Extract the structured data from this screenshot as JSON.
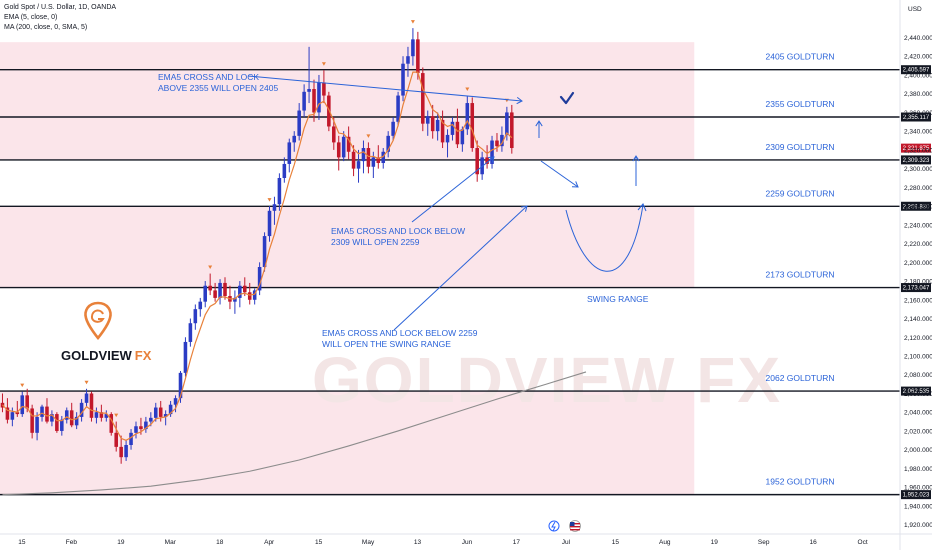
{
  "legend": {
    "symbol": "Gold Spot / U.S. Dollar, 1D, OANDA",
    "ema": "EMA (5, close, 0)",
    "ma": "MA (200, close, 0, SMA, 5)"
  },
  "currency": "USD",
  "brand": {
    "name": "GOLDVIEW",
    "suffix": "FX",
    "watermark": "GOLDVIEW FX"
  },
  "colors": {
    "up": "#2b3cc4",
    "down": "#c2182b",
    "zone": "#f9dce3",
    "annotation": "#2b63d8",
    "ema": "#e8813a",
    "ma": "#8c8c8c",
    "level_line": "#131722"
  },
  "levels": [
    {
      "label": "2405 GOLDTURN",
      "price": 2405.597,
      "tag": "2,405.597"
    },
    {
      "label": "2355 GOLDTURN",
      "price": 2355.117,
      "tag": "2,355.117"
    },
    {
      "label": "2309 GOLDTURN",
      "price": 2309.323,
      "tag": "2,309.323"
    },
    {
      "label": "2259 GOLDTURN",
      "price": 2259.83,
      "tag": "2,259.830"
    },
    {
      "label": "2173 GOLDTURN",
      "price": 2173.047,
      "tag": "2,173.047"
    },
    {
      "label": "2062 GOLDTURN",
      "price": 2062.535,
      "tag": "2,062.535"
    },
    {
      "label": "1952 GOLDTURN",
      "price": 1952.023,
      "tag": "1,952.023"
    }
  ],
  "current_price": {
    "price": 2321.875,
    "tag": "2,321.875"
  },
  "annotations": [
    {
      "lines": [
        "EMA5 CROSS AND LOCK",
        "ABOVE 2355 WILL OPEN 2405"
      ]
    },
    {
      "lines": [
        "EMA5 CROSS AND LOCK BELOW",
        "2309 WILL OPEN 2259"
      ]
    },
    {
      "lines": [
        "EMA5 CROSS AND LOCK BELOW 2259",
        "WILL OPEN THE SWING RANGE"
      ]
    },
    {
      "lines": [
        "SWING RANGE"
      ]
    }
  ],
  "chart_data": {
    "type": "candlestick",
    "title": "Gold Spot / U.S. Dollar, 1D, OANDA",
    "ylim": [
      1910,
      2480
    ],
    "y_ticks": [
      1920,
      1940,
      1960,
      1980,
      2000,
      2020,
      2040,
      2060,
      2080,
      2100,
      2120,
      2140,
      2160,
      2180,
      2200,
      2220,
      2240,
      2260,
      2280,
      2300,
      2320,
      2340,
      2360,
      2380,
      2400,
      2420,
      2440
    ],
    "y_tick_labels": [
      "1,920.000",
      "1,940.000",
      "1,960.000",
      "1,980.000",
      "2,000.000",
      "2,020.000",
      "2,040.000",
      "2,060.000",
      "2,080.000",
      "2,100.000",
      "2,120.000",
      "2,140.000",
      "2,160.000",
      "2,180.000",
      "2,200.000",
      "2,220.000",
      "2,240.000",
      "2,260.000",
      "2,280.000",
      "2,300.000",
      "2,320.000",
      "2,340.000",
      "2,360.000",
      "2,380.000",
      "2,400.000",
      "2,420.000",
      "2,440.000"
    ],
    "x_labels": [
      "15",
      "Feb",
      "19",
      "Mar",
      "18",
      "Apr",
      "15",
      "May",
      "13",
      "Jun",
      "17",
      "Jul",
      "15",
      "Aug",
      "19",
      "Sep",
      "16",
      "Oct"
    ],
    "x_label_bar_index": [
      10,
      20,
      30,
      40,
      50,
      60,
      70,
      80,
      90,
      100,
      110,
      120,
      130,
      140,
      150,
      160,
      170,
      180
    ],
    "total_slots": 182,
    "zones": [
      [
        2355.117,
        2435
      ],
      [
        2309.323,
        2355.117
      ],
      [
        2173.047,
        2259.83
      ],
      [
        1952.023,
        2062.535
      ]
    ],
    "candles": [
      [
        2050,
        2060,
        2040,
        2045
      ],
      [
        2045,
        2055,
        2028,
        2032
      ],
      [
        2032,
        2045,
        2025,
        2040
      ],
      [
        2040,
        2052,
        2035,
        2038
      ],
      [
        2038,
        2062,
        2035,
        2058
      ],
      [
        2058,
        2065,
        2040,
        2044
      ],
      [
        2044,
        2048,
        2012,
        2018
      ],
      [
        2018,
        2040,
        2010,
        2035
      ],
      [
        2035,
        2048,
        2030,
        2046
      ],
      [
        2046,
        2055,
        2028,
        2030
      ],
      [
        2030,
        2042,
        2025,
        2038
      ],
      [
        2038,
        2040,
        2018,
        2020
      ],
      [
        2020,
        2036,
        2015,
        2032
      ],
      [
        2032,
        2045,
        2028,
        2042
      ],
      [
        2042,
        2050,
        2024,
        2026
      ],
      [
        2026,
        2040,
        2022,
        2035
      ],
      [
        2035,
        2054,
        2030,
        2050
      ],
      [
        2050,
        2065,
        2045,
        2060
      ],
      [
        2060,
        2062,
        2030,
        2034
      ],
      [
        2034,
        2045,
        2028,
        2040
      ],
      [
        2040,
        2048,
        2030,
        2034
      ],
      [
        2034,
        2042,
        2030,
        2038
      ],
      [
        2038,
        2040,
        2015,
        2018
      ],
      [
        2018,
        2030,
        1998,
        2003
      ],
      [
        2003,
        2015,
        1985,
        1992
      ],
      [
        1992,
        2010,
        1988,
        2005
      ],
      [
        2005,
        2022,
        2000,
        2018
      ],
      [
        2018,
        2030,
        2012,
        2025
      ],
      [
        2025,
        2034,
        2016,
        2022
      ],
      [
        2022,
        2035,
        2018,
        2030
      ],
      [
        2030,
        2040,
        2025,
        2034
      ],
      [
        2034,
        2050,
        2030,
        2045
      ],
      [
        2045,
        2052,
        2030,
        2035
      ],
      [
        2035,
        2042,
        2026,
        2038
      ],
      [
        2038,
        2052,
        2035,
        2048
      ],
      [
        2048,
        2058,
        2040,
        2055
      ],
      [
        2055,
        2084,
        2050,
        2082
      ],
      [
        2082,
        2120,
        2078,
        2115
      ],
      [
        2115,
        2140,
        2110,
        2135
      ],
      [
        2135,
        2155,
        2128,
        2150
      ],
      [
        2150,
        2162,
        2142,
        2158
      ],
      [
        2158,
        2180,
        2152,
        2175
      ],
      [
        2175,
        2188,
        2165,
        2170
      ],
      [
        2170,
        2178,
        2158,
        2162
      ],
      [
        2162,
        2182,
        2155,
        2178
      ],
      [
        2178,
        2184,
        2160,
        2164
      ],
      [
        2164,
        2175,
        2150,
        2158
      ],
      [
        2158,
        2170,
        2145,
        2162
      ],
      [
        2162,
        2180,
        2152,
        2175
      ],
      [
        2175,
        2184,
        2164,
        2168
      ],
      [
        2168,
        2178,
        2155,
        2160
      ],
      [
        2160,
        2172,
        2155,
        2170
      ],
      [
        2170,
        2200,
        2165,
        2195
      ],
      [
        2195,
        2232,
        2190,
        2228
      ],
      [
        2228,
        2260,
        2222,
        2255
      ],
      [
        2255,
        2270,
        2240,
        2262
      ],
      [
        2262,
        2295,
        2255,
        2290
      ],
      [
        2290,
        2312,
        2285,
        2305
      ],
      [
        2305,
        2332,
        2296,
        2328
      ],
      [
        2328,
        2340,
        2318,
        2335
      ],
      [
        2335,
        2370,
        2330,
        2362
      ],
      [
        2362,
        2390,
        2355,
        2382
      ],
      [
        2382,
        2430,
        2370,
        2385
      ],
      [
        2385,
        2395,
        2350,
        2360
      ],
      [
        2360,
        2400,
        2352,
        2392
      ],
      [
        2392,
        2405,
        2370,
        2378
      ],
      [
        2378,
        2382,
        2340,
        2345
      ],
      [
        2345,
        2355,
        2320,
        2328
      ],
      [
        2328,
        2335,
        2298,
        2312
      ],
      [
        2312,
        2340,
        2308,
        2334
      ],
      [
        2334,
        2345,
        2310,
        2318
      ],
      [
        2318,
        2325,
        2292,
        2300
      ],
      [
        2300,
        2320,
        2285,
        2308
      ],
      [
        2308,
        2330,
        2295,
        2322
      ],
      [
        2322,
        2328,
        2295,
        2302
      ],
      [
        2302,
        2318,
        2290,
        2312
      ],
      [
        2312,
        2325,
        2300,
        2306
      ],
      [
        2306,
        2322,
        2300,
        2318
      ],
      [
        2318,
        2340,
        2312,
        2335
      ],
      [
        2335,
        2355,
        2330,
        2350
      ],
      [
        2350,
        2382,
        2345,
        2378
      ],
      [
        2378,
        2420,
        2372,
        2412
      ],
      [
        2412,
        2430,
        2398,
        2420
      ],
      [
        2420,
        2450,
        2410,
        2438
      ],
      [
        2438,
        2446,
        2395,
        2402
      ],
      [
        2402,
        2408,
        2340,
        2348
      ],
      [
        2348,
        2362,
        2335,
        2356
      ],
      [
        2356,
        2368,
        2332,
        2340
      ],
      [
        2340,
        2360,
        2330,
        2352
      ],
      [
        2352,
        2362,
        2322,
        2328
      ],
      [
        2328,
        2342,
        2312,
        2336
      ],
      [
        2336,
        2355,
        2330,
        2350
      ],
      [
        2350,
        2364,
        2322,
        2326
      ],
      [
        2326,
        2345,
        2318,
        2342
      ],
      [
        2342,
        2378,
        2336,
        2370
      ],
      [
        2370,
        2376,
        2318,
        2322
      ],
      [
        2322,
        2330,
        2286,
        2294
      ],
      [
        2294,
        2318,
        2288,
        2312
      ],
      [
        2312,
        2325,
        2300,
        2305
      ],
      [
        2305,
        2335,
        2300,
        2330
      ],
      [
        2330,
        2338,
        2318,
        2324
      ],
      [
        2324,
        2345,
        2318,
        2336
      ],
      [
        2336,
        2366,
        2330,
        2360
      ],
      [
        2360,
        2368,
        2316,
        2322
      ]
    ],
    "ema5": [
      2048,
      2042,
      2041,
      2040,
      2046,
      2045,
      2036,
      2036,
      2039,
      2036,
      2037,
      2031,
      2031,
      2035,
      2032,
      2033,
      2039,
      2046,
      2042,
      2041,
      2039,
      2039,
      2032,
      2022,
      2012,
      2010,
      2013,
      2017,
      2019,
      2023,
      2027,
      2033,
      2034,
      2035,
      2039,
      2044,
      2057,
      2076,
      2096,
      2114,
      2129,
      2144,
      2153,
      2156,
      2163,
      2163,
      2161,
      2161,
      2166,
      2167,
      2165,
      2166,
      2176,
      2193,
      2214,
      2230,
      2250,
      2268,
      2288,
      2304,
      2323,
      2343,
      2357,
      2358,
      2369,
      2372,
      2363,
      2351,
      2338,
      2337,
      2331,
      2321,
      2316,
      2318,
      2313,
      2313,
      2311,
      2313,
      2320,
      2330,
      2346,
      2368,
      2385,
      2403,
      2403,
      2385,
      2375,
      2363,
      2359,
      2349,
      2345,
      2347,
      2340,
      2341,
      2351,
      2341,
      2325,
      2321,
      2316,
      2320,
      2322,
      2327,
      2338,
      2333
    ],
    "ma200": [
      [
        0,
        1952
      ],
      [
        10,
        1954
      ],
      [
        20,
        1957
      ],
      [
        30,
        1961
      ],
      [
        40,
        1968
      ],
      [
        50,
        1977
      ],
      [
        60,
        1989
      ],
      [
        70,
        2004
      ],
      [
        80,
        2020
      ],
      [
        90,
        2037
      ],
      [
        100,
        2054
      ],
      [
        110,
        2070
      ],
      [
        118,
        2083
      ]
    ],
    "ema_marker_up": [
      0,
      5,
      19,
      33,
      36,
      44,
      48,
      57,
      72,
      86,
      104
    ],
    "ema_marker_down": [
      4,
      17,
      23,
      42,
      54,
      65,
      74,
      83,
      94,
      102
    ]
  }
}
